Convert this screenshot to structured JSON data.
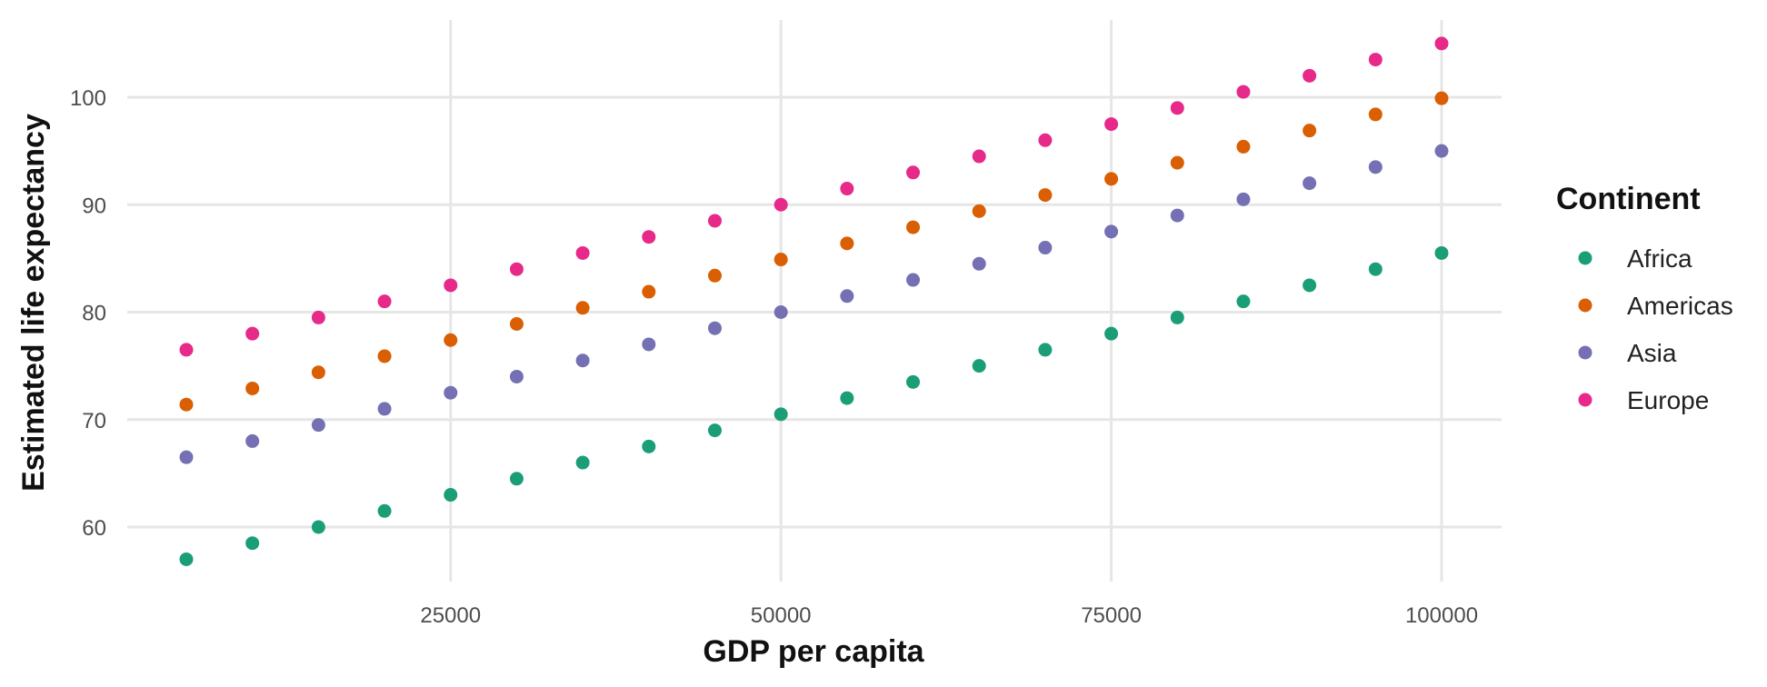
{
  "chart_data": {
    "type": "scatter",
    "xlabel": "GDP per capita",
    "ylabel": "Estimated life expectancy",
    "xlim": [
      0,
      105000
    ],
    "ylim": [
      55,
      107
    ],
    "x_ticks": [
      25000,
      50000,
      75000,
      100000
    ],
    "y_ticks": [
      60,
      70,
      80,
      90,
      100
    ],
    "grid": true,
    "legend": {
      "title": "Continent",
      "position": "right"
    },
    "x": [
      5000,
      10000,
      15000,
      20000,
      25000,
      30000,
      35000,
      40000,
      45000,
      50000,
      55000,
      60000,
      65000,
      70000,
      75000,
      80000,
      85000,
      90000,
      95000,
      100000
    ],
    "series": [
      {
        "name": "Africa",
        "color": "#1b9e77",
        "values": [
          57.0,
          58.5,
          60.0,
          61.5,
          63.0,
          64.5,
          66.0,
          67.5,
          69.0,
          70.5,
          72.0,
          73.5,
          75.0,
          76.5,
          78.0,
          79.5,
          81.0,
          82.5,
          84.0,
          85.5
        ]
      },
      {
        "name": "Americas",
        "color": "#d95f02",
        "values": [
          71.4,
          72.9,
          74.4,
          75.9,
          77.4,
          78.9,
          80.4,
          81.9,
          83.4,
          84.9,
          86.4,
          87.9,
          89.4,
          90.9,
          92.4,
          93.9,
          95.4,
          96.9,
          98.4,
          99.9
        ]
      },
      {
        "name": "Asia",
        "color": "#7570b3",
        "values": [
          66.5,
          68.0,
          69.5,
          71.0,
          72.5,
          74.0,
          75.5,
          77.0,
          78.5,
          80.0,
          81.5,
          83.0,
          84.5,
          86.0,
          87.5,
          89.0,
          90.5,
          92.0,
          93.5,
          95.0
        ]
      },
      {
        "name": "Europe",
        "color": "#e7298a",
        "values": [
          76.5,
          78.0,
          79.5,
          81.0,
          82.5,
          84.0,
          85.5,
          87.0,
          88.5,
          90.0,
          91.5,
          93.0,
          94.5,
          96.0,
          97.5,
          99.0,
          100.5,
          102.0,
          103.5,
          105.0
        ]
      }
    ]
  }
}
